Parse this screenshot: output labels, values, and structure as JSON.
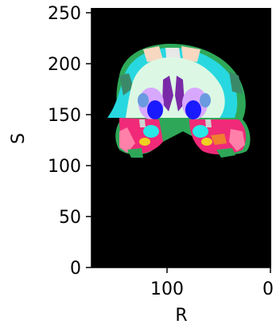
{
  "chart_data": {
    "type": "heatmap",
    "title": "",
    "xlabel": "R",
    "ylabel": "S",
    "xlim": [
      180,
      0
    ],
    "ylim": [
      0,
      256
    ],
    "x_ticks": [
      {
        "value": 100,
        "label": "100"
      },
      {
        "value": 0,
        "label": "0"
      }
    ],
    "y_ticks": [
      {
        "value": 0,
        "label": "0"
      },
      {
        "value": 50,
        "label": "50"
      },
      {
        "value": 100,
        "label": "100"
      },
      {
        "value": 150,
        "label": "150"
      },
      {
        "value": 200,
        "label": "200"
      },
      {
        "value": 250,
        "label": "250"
      }
    ],
    "grid": false,
    "legend": "none",
    "colors": {
      "background": "#000000",
      "white_matter": "#dcf8e4",
      "cortex_cyan": "#28d8e0",
      "cortex_green": "#2ea858",
      "cortex_pink": "#f02a78",
      "ventricle_purple": "#7a2aa8",
      "thalamus_blue": "#1a1aff",
      "putamen_lilac": "#d8a8ff",
      "hippocampus_yellow": "#f0d020"
    }
  }
}
